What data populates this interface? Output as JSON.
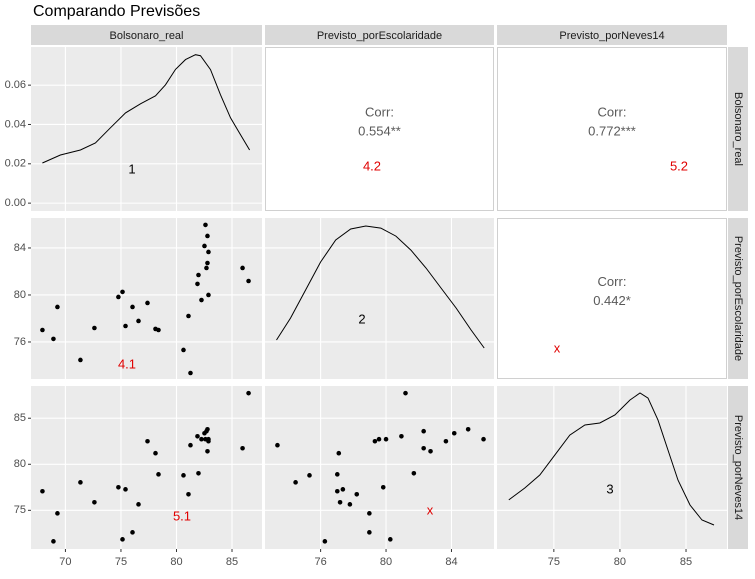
{
  "title": "Comparando Previsões",
  "columns": [
    "Bolsonaro_real",
    "Previsto_porEscolaridade",
    "Previsto_porNeves14"
  ],
  "rows": [
    "Bolsonaro_real",
    "Previsto_porEscolaridade",
    "Previsto_porNeves14"
  ],
  "x_axes": [
    {
      "xlim": [
        66.9,
        87.7
      ],
      "xticks": [
        70,
        75,
        80,
        85
      ]
    },
    {
      "xlim": [
        72.6,
        86.6
      ],
      "xticks": [
        76,
        80,
        84
      ]
    },
    {
      "xlim": [
        70.7,
        88.1
      ],
      "xticks": [
        75,
        80,
        85
      ]
    }
  ],
  "y_axes": [
    {
      "ylim": [
        -0.004,
        0.0794
      ],
      "yticks": [
        {
          "value": 0,
          "label": "0.00"
        },
        {
          "value": 0.02,
          "label": "0.02"
        },
        {
          "value": 0.04,
          "label": "0.04"
        },
        {
          "value": 0.06,
          "label": "0.06"
        }
      ]
    },
    {
      "ylim": [
        72.85,
        86.55
      ],
      "yticks": [
        76,
        80,
        84
      ]
    },
    {
      "ylim": [
        70.8,
        88.5
      ],
      "yticks": [
        75,
        80,
        85
      ]
    }
  ],
  "chart_data": [
    {
      "type": "density",
      "color": "#000000",
      "annotation": "1",
      "annotation_color": "#000000",
      "x": [
        67.93,
        69.55,
        71.35,
        72.7,
        74.05,
        75.41,
        76.76,
        78.11,
        79.01,
        79.91,
        80.81,
        81.71,
        82.16,
        83.06,
        83.96,
        84.86,
        85.77,
        86.58
      ],
      "y": [
        0.0204,
        0.0245,
        0.027,
        0.0306,
        0.0383,
        0.0459,
        0.0505,
        0.0546,
        0.0602,
        0.068,
        0.073,
        0.0755,
        0.075,
        0.0679,
        0.0551,
        0.0434,
        0.0347,
        0.027
      ]
    },
    {
      "type": "correlation",
      "label": "Corr:",
      "corr": "0.554**",
      "annotation": "4.2",
      "annotation_color": "#e00000"
    },
    {
      "type": "correlation",
      "label": "Corr:",
      "corr": "0.772***",
      "annotation": "5.2",
      "annotation_color": "#e00000"
    },
    {
      "type": "scatter",
      "color": "#000000",
      "annotation": "4.1",
      "annotation_color": "#e00000",
      "x": [
        67.93,
        68.92,
        69.28,
        71.35,
        72.61,
        74.77,
        75.14,
        75.41,
        76.04,
        76.58,
        77.39,
        78.11,
        78.38,
        80.63,
        81.08,
        81.26,
        81.89,
        81.98,
        82.25,
        82.52,
        82.61,
        82.7,
        82.79,
        82.79,
        82.88,
        82.88,
        85.95,
        86.49
      ],
      "y": [
        77.02,
        76.26,
        78.98,
        74.47,
        77.19,
        79.83,
        80.26,
        77.36,
        78.98,
        77.79,
        79.32,
        77.11,
        77.02,
        75.32,
        78.21,
        73.36,
        80.94,
        81.7,
        79.57,
        84.17,
        85.96,
        82.3,
        85.02,
        82.72,
        80.0,
        83.66,
        82.3,
        81.19
      ]
    },
    {
      "type": "density",
      "color": "#000000",
      "annotation": "2",
      "annotation_color": "#000000",
      "ylim": [
        0,
        0.12
      ],
      "x": [
        73.3,
        74.16,
        75.08,
        76.0,
        76.92,
        77.84,
        78.76,
        79.68,
        80.6,
        81.52,
        82.44,
        83.36,
        84.28,
        85.2,
        86.0
      ],
      "y": [
        0.0291,
        0.0454,
        0.0663,
        0.0872,
        0.1036,
        0.1118,
        0.114,
        0.1125,
        0.1065,
        0.0961,
        0.0827,
        0.0678,
        0.0529,
        0.0365,
        0.0231
      ]
    },
    {
      "type": "correlation",
      "label": "Corr:",
      "corr": "0.442*",
      "annotation": "x",
      "annotation_color": "#e00000"
    },
    {
      "type": "scatter",
      "color": "#000000",
      "annotation": "5.1",
      "annotation_color": "#e00000",
      "x": [
        67.93,
        68.92,
        69.28,
        71.35,
        72.61,
        74.77,
        75.14,
        75.41,
        76.04,
        76.58,
        77.39,
        78.11,
        78.38,
        80.63,
        81.08,
        81.26,
        81.89,
        81.98,
        82.25,
        82.52,
        82.61,
        82.7,
        82.79,
        82.79,
        82.88,
        82.88,
        85.95,
        86.49
      ],
      "y": [
        77.07,
        71.63,
        74.67,
        78.04,
        75.87,
        77.5,
        71.85,
        77.28,
        72.61,
        75.65,
        82.5,
        81.2,
        78.91,
        78.8,
        76.74,
        82.07,
        83.04,
        79.02,
        82.72,
        83.37,
        82.72,
        83.59,
        83.8,
        81.41,
        82.72,
        82.5,
        81.74,
        87.72
      ]
    },
    {
      "type": "scatter",
      "color": "#000000",
      "annotation": "x",
      "annotation_color": "#e00000",
      "x": [
        77.02,
        76.26,
        78.98,
        74.47,
        77.19,
        79.83,
        80.26,
        77.36,
        78.98,
        77.79,
        79.32,
        77.11,
        77.02,
        75.32,
        78.21,
        73.36,
        80.94,
        81.7,
        79.57,
        84.17,
        85.96,
        82.3,
        85.02,
        82.72,
        80.0,
        83.66,
        82.3,
        81.19
      ],
      "y": [
        77.07,
        71.63,
        74.67,
        78.04,
        75.87,
        77.5,
        71.85,
        77.28,
        72.61,
        75.65,
        82.5,
        81.2,
        78.91,
        78.8,
        76.74,
        82.07,
        83.04,
        79.02,
        82.72,
        83.37,
        82.72,
        83.59,
        83.8,
        81.41,
        82.72,
        82.5,
        81.74,
        87.72
      ]
    },
    {
      "type": "density",
      "color": "#000000",
      "annotation": "3",
      "annotation_color": "#000000",
      "ylim": [
        0,
        0.1
      ],
      "x": [
        71.59,
        72.8,
        73.94,
        75.08,
        76.21,
        77.35,
        78.48,
        79.62,
        80.76,
        81.52,
        82.12,
        82.88,
        83.64,
        84.39,
        85.3,
        86.21,
        87.12
      ],
      "y": [
        0.0301,
        0.0374,
        0.0454,
        0.0577,
        0.0699,
        0.0761,
        0.0773,
        0.0822,
        0.0914,
        0.0957,
        0.0926,
        0.0791,
        0.0607,
        0.0423,
        0.027,
        0.0178,
        0.0147
      ]
    }
  ]
}
